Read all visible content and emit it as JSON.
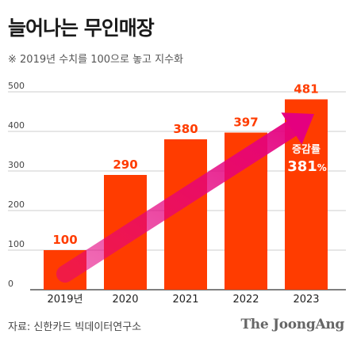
{
  "header": {
    "title": "늘어나는 무인매장",
    "subtitle": "※ 2019년 수치를 100으로 놓고 지수화"
  },
  "footer": {
    "source": "자료: 신한카드 빅데이터연구소",
    "logo": "The JoongAng"
  },
  "colors": {
    "bar": "#ff3c00",
    "label": "#ff3c00",
    "arrow": "#e4007f",
    "grid": "#cccccc",
    "axis": "#333333"
  },
  "chart_data": {
    "type": "bar",
    "categories": [
      "2019년",
      "2020",
      "2021",
      "2022",
      "2023"
    ],
    "values": [
      100,
      290,
      380,
      397,
      481
    ],
    "ylim": [
      0,
      500
    ],
    "yticks": [
      0,
      100,
      200,
      300,
      400,
      500
    ],
    "grid": true,
    "annotation": {
      "label": "증감률",
      "value": "381",
      "unit": "%"
    }
  }
}
